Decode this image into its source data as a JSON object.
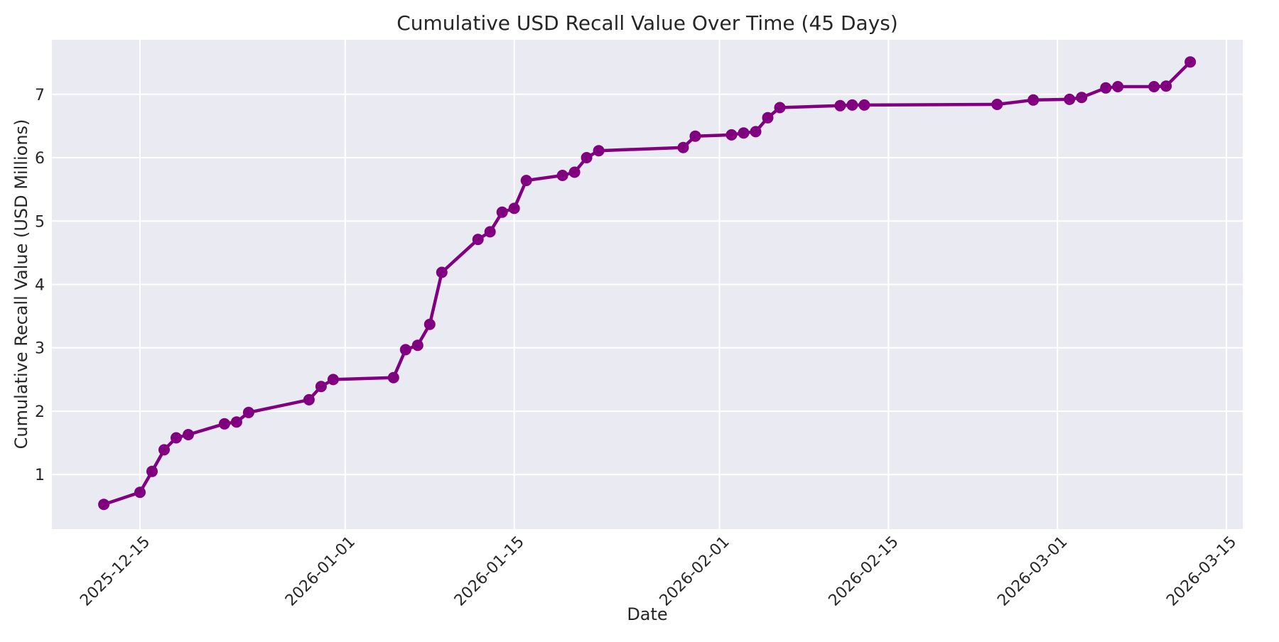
{
  "chart_data": {
    "type": "line",
    "title": "Cumulative USD Recall Value Over Time (45 Days)",
    "xlabel": "Date",
    "ylabel": "Cumulative Recall Value (USD Millions)",
    "legend": "none",
    "grid": "on",
    "style": "darkgrid",
    "colors": {
      "line": "#800080",
      "marker": "#800080",
      "plot_background": "#eaeaf2",
      "gridline": "#ffffff",
      "figure_background": "#ffffff",
      "text": "#262626"
    },
    "x_ticks": [
      "2025-12-15",
      "2026-01-01",
      "2026-01-15",
      "2026-02-01",
      "2026-02-15",
      "2026-03-01",
      "2026-03-15"
    ],
    "y_ticks": [
      1,
      2,
      3,
      4,
      5,
      6,
      7
    ],
    "xlim_dates": [
      "2025-12-08",
      "2026-03-16"
    ],
    "ylim": [
      0.14,
      7.86
    ],
    "points": [
      {
        "date": "2025-12-12",
        "value": 0.53
      },
      {
        "date": "2025-12-15",
        "value": 0.72
      },
      {
        "date": "2025-12-16",
        "value": 1.05
      },
      {
        "date": "2025-12-17",
        "value": 1.39
      },
      {
        "date": "2025-12-18",
        "value": 1.58
      },
      {
        "date": "2025-12-19",
        "value": 1.63
      },
      {
        "date": "2025-12-22",
        "value": 1.8
      },
      {
        "date": "2025-12-23",
        "value": 1.83
      },
      {
        "date": "2025-12-24",
        "value": 1.98
      },
      {
        "date": "2025-12-29",
        "value": 2.18
      },
      {
        "date": "2025-12-30",
        "value": 2.39
      },
      {
        "date": "2025-12-31",
        "value": 2.5
      },
      {
        "date": "2026-01-05",
        "value": 2.53
      },
      {
        "date": "2026-01-06",
        "value": 2.97
      },
      {
        "date": "2026-01-07",
        "value": 3.04
      },
      {
        "date": "2026-01-08",
        "value": 3.37
      },
      {
        "date": "2026-01-09",
        "value": 4.19
      },
      {
        "date": "2026-01-12",
        "value": 4.71
      },
      {
        "date": "2026-01-13",
        "value": 4.83
      },
      {
        "date": "2026-01-14",
        "value": 5.14
      },
      {
        "date": "2026-01-15",
        "value": 5.2
      },
      {
        "date": "2026-01-16",
        "value": 5.64
      },
      {
        "date": "2026-01-19",
        "value": 5.72
      },
      {
        "date": "2026-01-20",
        "value": 5.77
      },
      {
        "date": "2026-01-21",
        "value": 6.0
      },
      {
        "date": "2026-01-22",
        "value": 6.11
      },
      {
        "date": "2026-01-29",
        "value": 6.16
      },
      {
        "date": "2026-01-30",
        "value": 6.34
      },
      {
        "date": "2026-02-02",
        "value": 6.36
      },
      {
        "date": "2026-02-03",
        "value": 6.39
      },
      {
        "date": "2026-02-04",
        "value": 6.41
      },
      {
        "date": "2026-02-05",
        "value": 6.63
      },
      {
        "date": "2026-02-06",
        "value": 6.79
      },
      {
        "date": "2026-02-11",
        "value": 6.82
      },
      {
        "date": "2026-02-12",
        "value": 6.83
      },
      {
        "date": "2026-02-13",
        "value": 6.83
      },
      {
        "date": "2026-02-24",
        "value": 6.84
      },
      {
        "date": "2026-02-27",
        "value": 6.91
      },
      {
        "date": "2026-03-02",
        "value": 6.92
      },
      {
        "date": "2026-03-03",
        "value": 6.95
      },
      {
        "date": "2026-03-05",
        "value": 7.1
      },
      {
        "date": "2026-03-06",
        "value": 7.12
      },
      {
        "date": "2026-03-09",
        "value": 7.12
      },
      {
        "date": "2026-03-10",
        "value": 7.13
      },
      {
        "date": "2026-03-12",
        "value": 7.51
      }
    ]
  }
}
